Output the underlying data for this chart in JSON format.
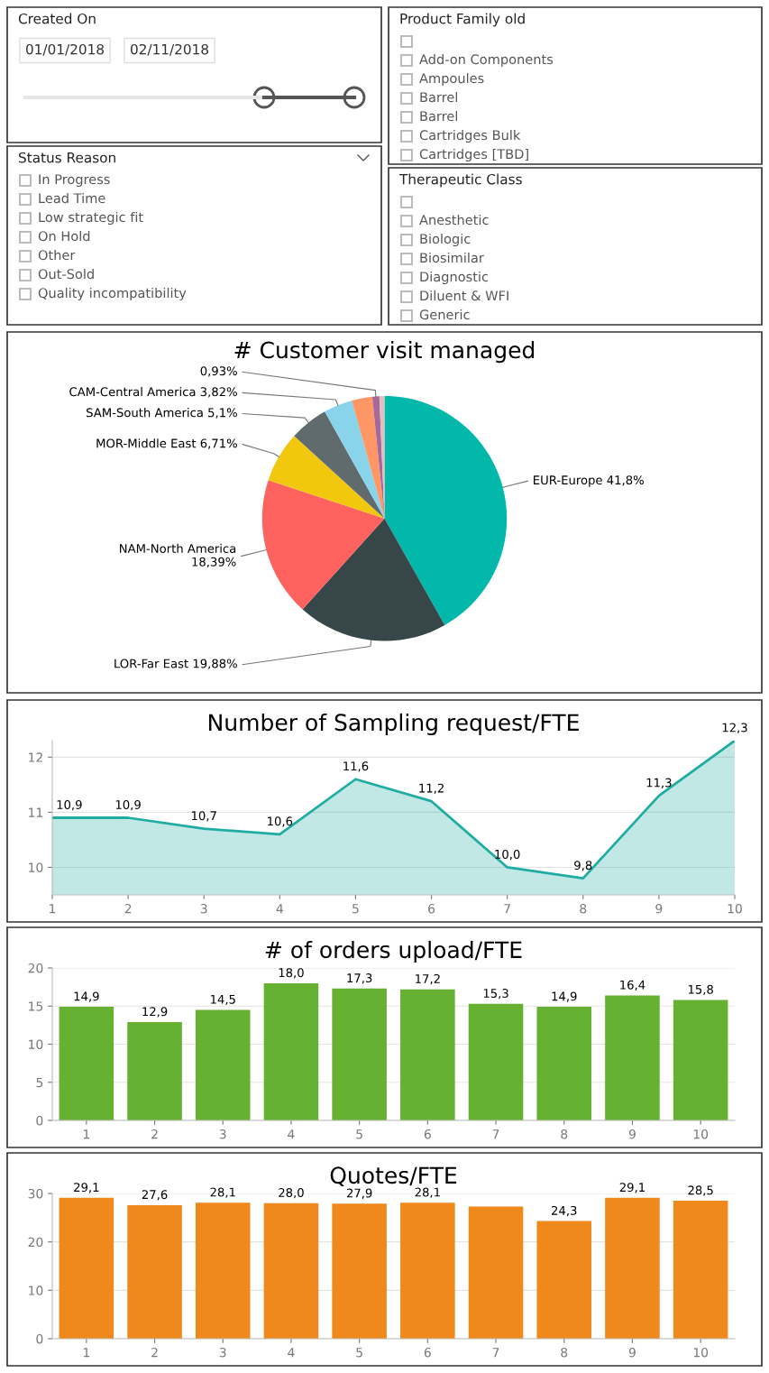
{
  "chart_data": [
    {
      "type": "other",
      "title": "Created On",
      "annotations": [
        "01/01/2018",
        "02/11/2018"
      ]
    },
    {
      "type": "pie",
      "title": "# Customer visit managed",
      "categories": [
        "EUR-Europe",
        "LOR-Far East",
        "NAM-North America",
        "MOR-Middle East",
        "SAM-South America",
        "CAM-Central America",
        null,
        null,
        null
      ],
      "values": [
        41.8,
        19.88,
        18.39,
        6.71,
        5.1,
        3.82,
        2.7,
        0.93,
        0.67
      ],
      "value_labels": [
        "41,8%",
        "19,88%",
        "18,39%",
        "6,71%",
        "5,1%",
        "3,82%",
        null,
        "0,93%",
        null
      ],
      "colors": [
        "#01b8aa",
        "#374649",
        "#fd625e",
        "#f2c80f",
        "#5f6b6d",
        "#8ad4eb",
        "#fe9666",
        "#a66999",
        "#dfbfbf"
      ]
    },
    {
      "type": "other",
      "title": "Product Family old",
      "annotations": [
        "Add-on Components",
        "Ampoules",
        "Barrel",
        "Barrel",
        "Cartridges Bulk",
        "Cartridges [TBD]"
      ]
    },
    {
      "type": "other",
      "title": "Status Reason",
      "annotations": [
        "In Progress",
        "Lead Time",
        "Low strategic fit",
        "On Hold",
        "Other",
        "Out-Sold",
        "Quality incompatibility"
      ]
    },
    {
      "type": "other",
      "title": "Therapeutic Class",
      "annotations": [
        "Anesthetic",
        "Biologic",
        "Biosimilar",
        "Diagnostic",
        "Diluent & WFI",
        "Generic"
      ]
    },
    {
      "type": "area",
      "title": "Number of Sampling request/FTE",
      "x": [
        1,
        2,
        3,
        4,
        5,
        6,
        7,
        8,
        9,
        10
      ],
      "series": [
        {
          "color": "#1fada3",
          "values": [
            10.9,
            10.9,
            10.7,
            10.6,
            11.6,
            11.2,
            10.0,
            9.8,
            11.3,
            12.3
          ],
          "value_labels": [
            "10,9",
            "10,9",
            "10,7",
            "10,6",
            "11,6",
            "11,2",
            "10,0",
            "9,8",
            "11,3",
            "12,3"
          ]
        }
      ],
      "xlim": [
        1,
        10
      ],
      "xticks": [
        1,
        2,
        3,
        4,
        5,
        6,
        7,
        8,
        9,
        10
      ],
      "ylim": [
        9.5,
        12.3
      ],
      "yticks": [
        10,
        11,
        12
      ],
      "grid": "y"
    },
    {
      "type": "bar",
      "title": "# of orders upload/FTE",
      "categories": [
        "1",
        "2",
        "3",
        "4",
        "5",
        "6",
        "7",
        "8",
        "9",
        "10"
      ],
      "series": [
        {
          "color": "#66b032",
          "values": [
            14.9,
            12.9,
            14.5,
            18.0,
            17.3,
            17.2,
            15.3,
            14.9,
            16.4,
            15.8
          ],
          "value_labels": [
            "14,9",
            "12,9",
            "14,5",
            "18,0",
            "17,3",
            "17,2",
            "15,3",
            "14,9",
            "16,4",
            "15,8"
          ]
        }
      ],
      "ylim": [
        0,
        20
      ],
      "yticks": [
        0,
        5,
        10,
        15,
        20
      ],
      "grid": "y"
    },
    {
      "type": "bar",
      "title": "Quotes/FTE",
      "categories": [
        "1",
        "2",
        "3",
        "4",
        "5",
        "6",
        "7",
        "8",
        "9",
        "10"
      ],
      "series": [
        {
          "color": "#f0891c",
          "values": [
            29.1,
            27.6,
            28.1,
            28.0,
            27.9,
            28.1,
            27.3,
            24.3,
            29.1,
            28.5
          ],
          "value_labels": [
            "29,1",
            "27,6",
            "28,1",
            "28,0",
            "27,9",
            "28,1",
            null,
            "24,3",
            "29,1",
            "28,5"
          ]
        }
      ],
      "ylim": [
        0,
        30
      ],
      "yticks": [
        0,
        10,
        20,
        30
      ],
      "grid": "y"
    }
  ]
}
